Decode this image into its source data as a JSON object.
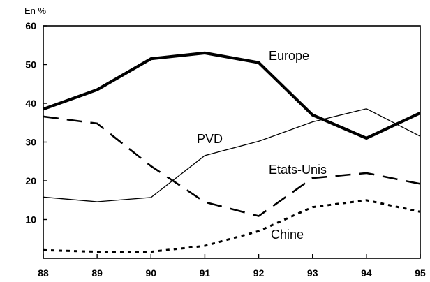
{
  "chart_data": {
    "type": "line",
    "ylabel": "En %",
    "x": [
      "88",
      "89",
      "90",
      "91",
      "92",
      "93",
      "94",
      "95"
    ],
    "ylim": [
      0,
      60
    ],
    "yticks": [
      "10",
      "20",
      "30",
      "40",
      "50",
      "60"
    ],
    "grid": false,
    "legend": "inline labels",
    "series": [
      {
        "name": "Europe",
        "values": [
          38.5,
          43.5,
          51.5,
          53,
          50.5,
          37,
          31,
          37.5
        ],
        "style": "solid-thick",
        "color": "#000000"
      },
      {
        "name": "PVD",
        "values": [
          15.8,
          14.6,
          15.7,
          26.5,
          30.2,
          35.2,
          38.6,
          31.5
        ],
        "style": "solid-thin",
        "color": "#000000"
      },
      {
        "name": "Etats-Unis",
        "values": [
          36.6,
          34.8,
          23.8,
          14.5,
          10.9,
          20.7,
          22,
          19.2
        ],
        "style": "dashed",
        "color": "#000000"
      },
      {
        "name": "Chine",
        "values": [
          2.1,
          1.7,
          1.7,
          3.2,
          7,
          13.2,
          15,
          12
        ],
        "style": "dotted",
        "color": "#000000"
      }
    ]
  }
}
